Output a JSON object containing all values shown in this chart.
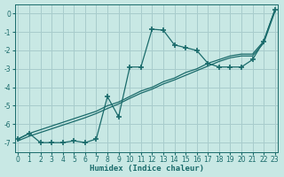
{
  "xlabel": "Humidex (Indice chaleur)",
  "xlim": [
    -0.3,
    23.3
  ],
  "ylim": [
    -7.5,
    0.5
  ],
  "ytick_min": -7,
  "ytick_max": 0,
  "background_color": "#c8e8e4",
  "grid_color": "#a8cccc",
  "line_color": "#1a6b6b",
  "line_wiggly_x": [
    0,
    1,
    2,
    3,
    4,
    5,
    6,
    7,
    8,
    9,
    10,
    11,
    12,
    13,
    14,
    15,
    16,
    17,
    18,
    19,
    20,
    21,
    22,
    23
  ],
  "line_wiggly_y": [
    -6.8,
    -6.5,
    -7.0,
    -7.0,
    -7.0,
    -6.9,
    -7.0,
    -6.8,
    -4.5,
    -5.6,
    -2.9,
    -2.9,
    -0.85,
    -0.9,
    -1.7,
    -1.85,
    -2.0,
    -2.7,
    -2.9,
    -2.9,
    -2.9,
    -2.5,
    -1.5,
    0.2
  ],
  "line_straight1_x": [
    0,
    1,
    2,
    3,
    4,
    5,
    6,
    7,
    8,
    9,
    10,
    11,
    12,
    13,
    14,
    15,
    16,
    17,
    18,
    19,
    20,
    21,
    22,
    23
  ],
  "line_straight1_y": [
    -6.8,
    -6.5,
    -6.3,
    -6.1,
    -5.9,
    -5.7,
    -5.5,
    -5.3,
    -5.0,
    -4.8,
    -4.5,
    -4.2,
    -4.0,
    -3.7,
    -3.5,
    -3.2,
    -3.0,
    -2.7,
    -2.5,
    -2.3,
    -2.2,
    -2.2,
    -1.5,
    0.2
  ],
  "line_straight2_x": [
    0,
    1,
    2,
    3,
    4,
    5,
    6,
    7,
    8,
    9,
    10,
    11,
    12,
    13,
    14,
    15,
    16,
    17,
    18,
    19,
    20,
    21,
    22,
    23
  ],
  "line_straight2_y": [
    -6.9,
    -6.65,
    -6.45,
    -6.25,
    -6.05,
    -5.85,
    -5.65,
    -5.42,
    -5.15,
    -4.9,
    -4.6,
    -4.32,
    -4.1,
    -3.82,
    -3.6,
    -3.35,
    -3.1,
    -2.85,
    -2.6,
    -2.4,
    -2.3,
    -2.3,
    -1.6,
    0.1
  ],
  "yticks": [
    0,
    -1,
    -2,
    -3,
    -4,
    -5,
    -6,
    -7
  ],
  "xticks": [
    0,
    1,
    2,
    3,
    4,
    5,
    6,
    7,
    8,
    9,
    10,
    11,
    12,
    13,
    14,
    15,
    16,
    17,
    18,
    19,
    20,
    21,
    22,
    23
  ]
}
